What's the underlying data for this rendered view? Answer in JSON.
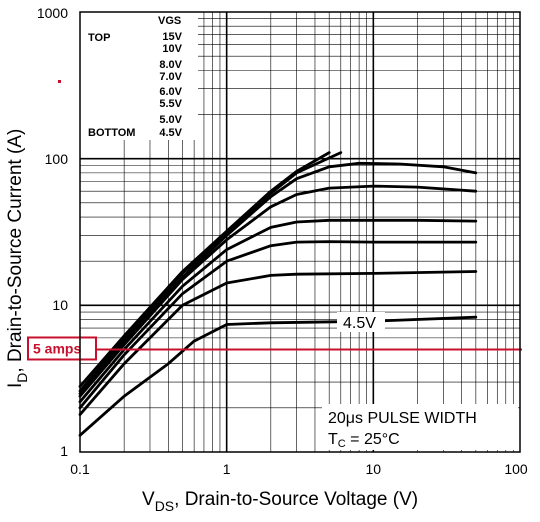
{
  "colors": {
    "curve": "#000000",
    "grid": "#000000",
    "marker": "#c8102e",
    "background": "#ffffff"
  },
  "chart_data": {
    "type": "line",
    "x_scale": "log",
    "y_scale": "log",
    "xlim": [
      0.1,
      100
    ],
    "ylim": [
      1,
      1000
    ],
    "x_ticks": [
      "0.1",
      "1",
      "10",
      "100"
    ],
    "y_ticks": [
      "1",
      "10",
      "100",
      "1000"
    ],
    "xlabel": {
      "main": "V",
      "sub": "DS",
      "rest": ", Drain-to-Source Voltage (V)"
    },
    "ylabel": {
      "main": "I",
      "sub": "D",
      "rest": ", Drain-to-Source Current (A)"
    },
    "grid": true,
    "legend": {
      "header": "VGS",
      "top_label": "TOP",
      "bottom_label": "BOTTOM",
      "entries": [
        "15V",
        "10V",
        "8.0V",
        "7.0V",
        "6.0V",
        "5.5V",
        "5.0V",
        "4.5V"
      ]
    },
    "annotations": {
      "curve_label": "4.5V",
      "pulse_line1": "20μs PULSE WIDTH",
      "pulse_line2_main": "T",
      "pulse_line2_sub": "C",
      "pulse_line2_rest": " = 25°C",
      "reference_label": "5 amps",
      "reference_value": 5
    },
    "series": [
      {
        "vgs": "15V",
        "points": [
          [
            0.1,
            2.8
          ],
          [
            0.2,
            6.2
          ],
          [
            0.5,
            17
          ],
          [
            1,
            32
          ],
          [
            2,
            60
          ],
          [
            3,
            82
          ],
          [
            5,
            110
          ]
        ]
      },
      {
        "vgs": "10V",
        "points": [
          [
            0.1,
            2.6
          ],
          [
            0.2,
            6.0
          ],
          [
            0.5,
            16.5
          ],
          [
            1,
            31
          ],
          [
            2,
            58
          ],
          [
            3,
            80
          ],
          [
            6,
            110
          ]
        ]
      },
      {
        "vgs": "8.0V",
        "points": [
          [
            0.1,
            2.5
          ],
          [
            0.2,
            5.7
          ],
          [
            0.5,
            15.5
          ],
          [
            1,
            30
          ],
          [
            2,
            55
          ],
          [
            3,
            73
          ],
          [
            5,
            88
          ],
          [
            8,
            93
          ],
          [
            15,
            92
          ],
          [
            30,
            88
          ],
          [
            50,
            80
          ]
        ]
      },
      {
        "vgs": "7.0V",
        "points": [
          [
            0.1,
            2.4
          ],
          [
            0.2,
            5.4
          ],
          [
            0.5,
            15
          ],
          [
            1,
            28
          ],
          [
            2,
            47
          ],
          [
            3,
            57
          ],
          [
            5,
            63
          ],
          [
            10,
            65
          ],
          [
            20,
            64
          ],
          [
            50,
            60
          ]
        ]
      },
      {
        "vgs": "6.0V",
        "points": [
          [
            0.1,
            2.2
          ],
          [
            0.2,
            5.0
          ],
          [
            0.5,
            13.5
          ],
          [
            1,
            24
          ],
          [
            2,
            34
          ],
          [
            3,
            37
          ],
          [
            5,
            38
          ],
          [
            10,
            38
          ],
          [
            20,
            38
          ],
          [
            50,
            37.5
          ]
        ]
      },
      {
        "vgs": "5.5V",
        "points": [
          [
            0.1,
            2.0
          ],
          [
            0.2,
            4.6
          ],
          [
            0.5,
            12
          ],
          [
            1,
            20
          ],
          [
            2,
            25.5
          ],
          [
            3,
            27
          ],
          [
            5,
            27.2
          ],
          [
            10,
            27
          ],
          [
            50,
            27
          ]
        ]
      },
      {
        "vgs": "5.0V",
        "points": [
          [
            0.1,
            1.8
          ],
          [
            0.2,
            4.0
          ],
          [
            0.5,
            10
          ],
          [
            1,
            14.2
          ],
          [
            2,
            16
          ],
          [
            3,
            16.3
          ],
          [
            10,
            16.5
          ],
          [
            50,
            17
          ]
        ]
      },
      {
        "vgs": "4.5V",
        "points": [
          [
            0.1,
            1.3
          ],
          [
            0.2,
            2.4
          ],
          [
            0.4,
            4.0
          ],
          [
            0.6,
            5.7
          ],
          [
            1,
            7.4
          ],
          [
            2,
            7.6
          ],
          [
            10,
            7.8
          ],
          [
            50,
            8.3
          ]
        ]
      }
    ]
  }
}
